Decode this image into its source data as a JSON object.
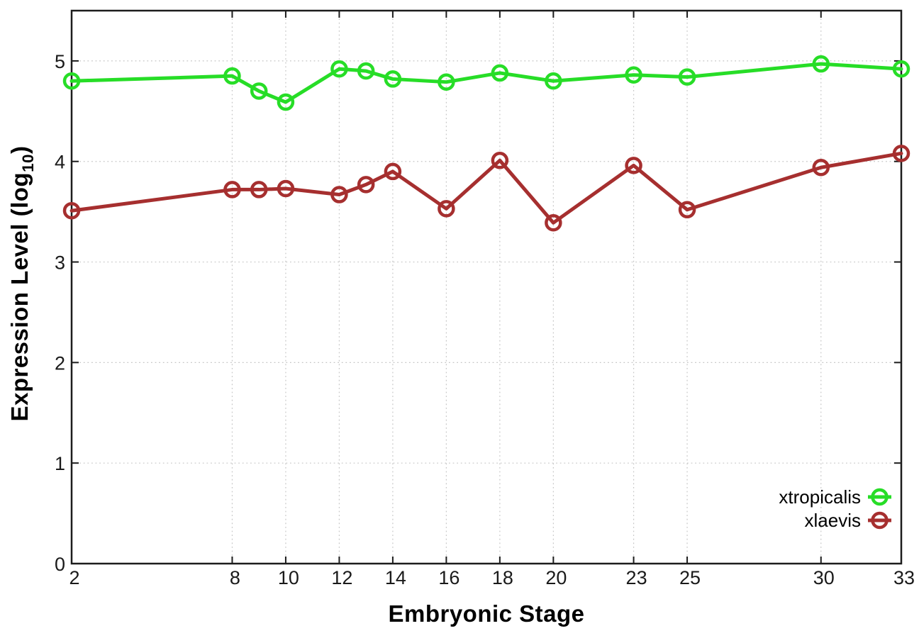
{
  "chart_data": {
    "type": "line",
    "title": "",
    "xlabel": "Embryonic Stage",
    "ylabel": "Expression Level (log10)",
    "ylabel_parts": {
      "prefix": "Expression Level (log",
      "sub": "10",
      "suffix": ")"
    },
    "x": [
      2,
      8,
      9,
      10,
      12,
      13,
      14,
      16,
      18,
      20,
      23,
      25,
      30,
      33
    ],
    "x_ticks": [
      2,
      8,
      10,
      12,
      14,
      16,
      18,
      20,
      23,
      25,
      30,
      33
    ],
    "x_tick_labels": [
      "2",
      "8",
      "10",
      "12",
      "14",
      "16",
      "18",
      "20",
      "23",
      "25",
      "30",
      "33"
    ],
    "y_ticks": [
      0,
      1,
      2,
      3,
      4,
      5
    ],
    "y_tick_labels": [
      "0",
      "1",
      "2",
      "3",
      "4",
      "5"
    ],
    "xlim": [
      2,
      33
    ],
    "ylim": [
      0,
      5.5
    ],
    "grid": true,
    "legend": {
      "position": "inside-bottom-right",
      "entries": [
        "xtropicalis",
        "xlaevis"
      ]
    },
    "series": [
      {
        "name": "xtropicalis",
        "color": "#27dd27",
        "marker": "open-circle",
        "values": [
          4.8,
          4.85,
          4.7,
          4.59,
          4.92,
          4.9,
          4.82,
          4.79,
          4.88,
          4.8,
          4.86,
          4.84,
          4.97,
          4.92
        ]
      },
      {
        "name": "xlaevis",
        "color": "#a62f2f",
        "marker": "open-circle",
        "values": [
          3.51,
          3.72,
          3.72,
          3.73,
          3.67,
          3.77,
          3.9,
          3.53,
          4.01,
          3.39,
          3.96,
          3.52,
          3.94,
          4.08
        ]
      }
    ],
    "colors": {
      "axis": "#1c1c1c",
      "grid": "#c6c6c6",
      "tick_label": "#1a1a1a",
      "legend_text": "#000000"
    }
  }
}
